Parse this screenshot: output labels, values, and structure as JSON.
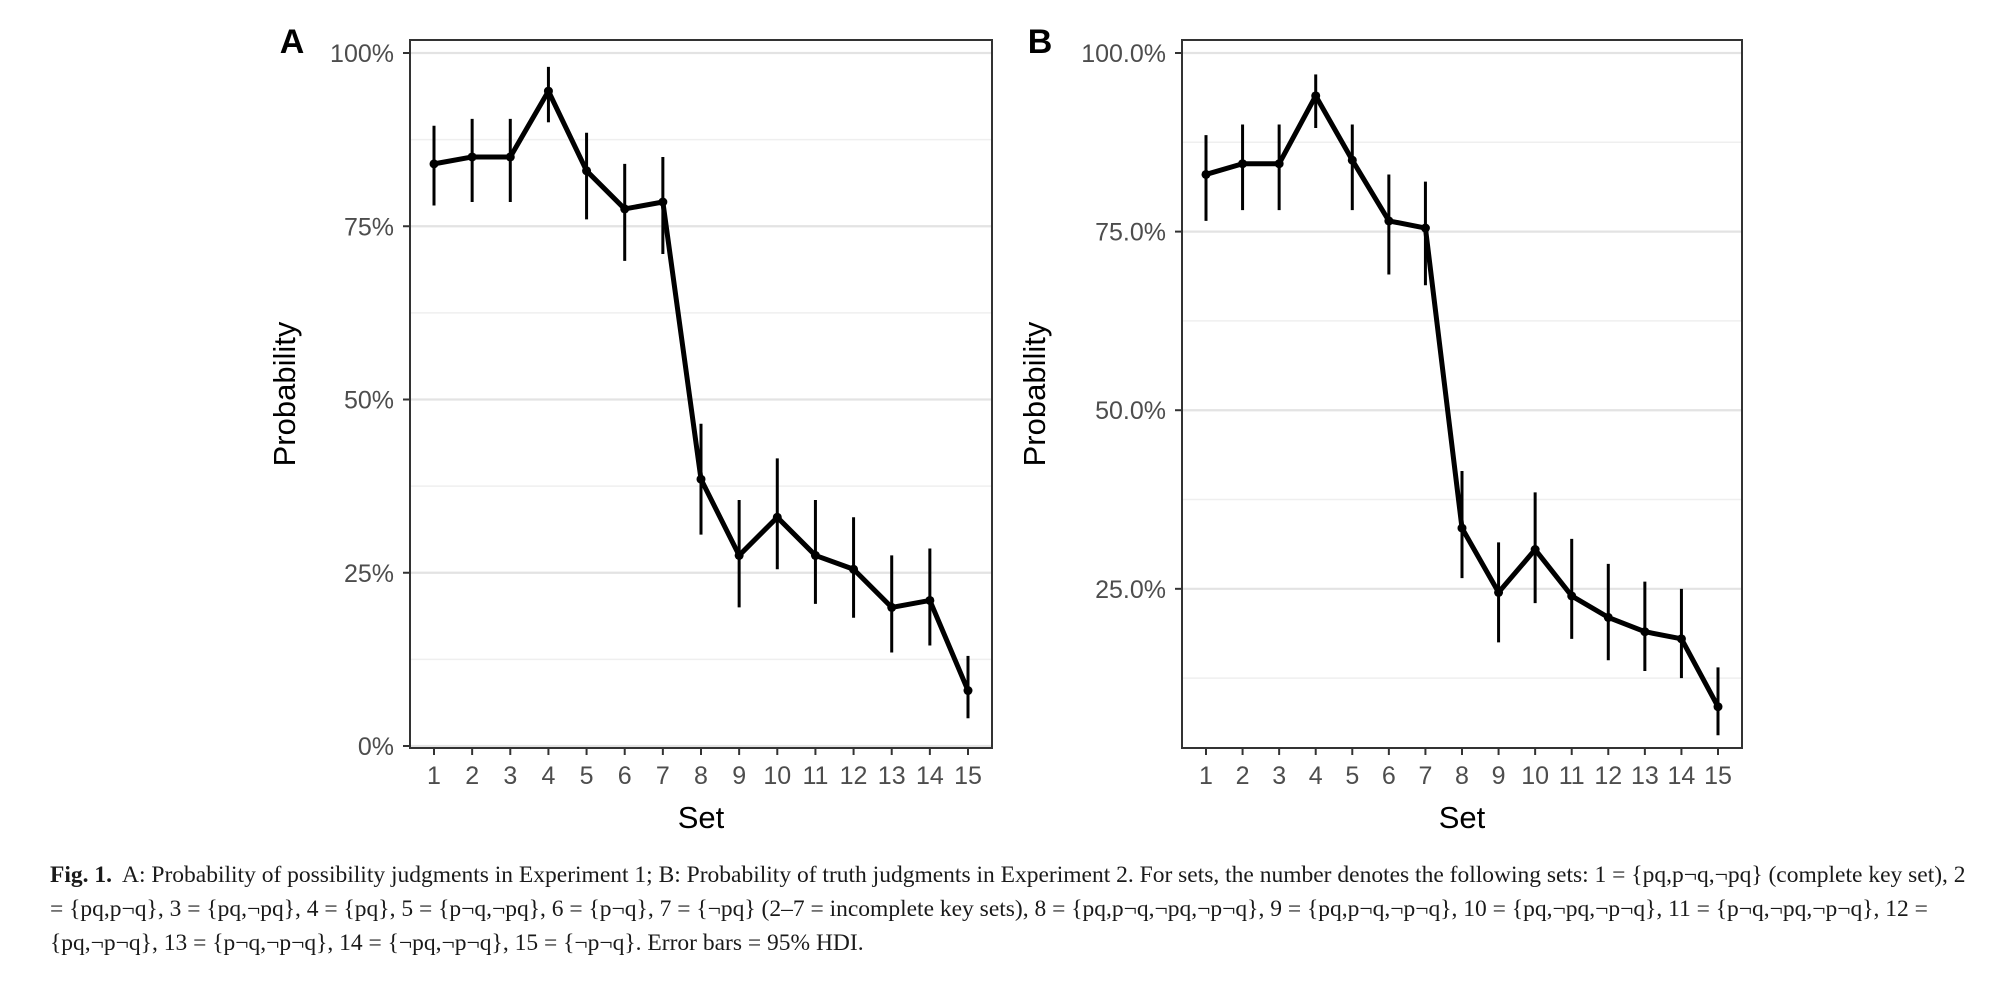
{
  "chart_data": [
    {
      "panel": "A",
      "type": "line",
      "xlabel": "Set",
      "ylabel": "Probability",
      "categories": [
        "1",
        "2",
        "3",
        "4",
        "5",
        "6",
        "7",
        "8",
        "9",
        "10",
        "11",
        "12",
        "13",
        "14",
        "15"
      ],
      "values": [
        0.84,
        0.85,
        0.85,
        0.945,
        0.83,
        0.775,
        0.785,
        0.385,
        0.275,
        0.33,
        0.275,
        0.255,
        0.2,
        0.21,
        0.08
      ],
      "error_low": [
        0.78,
        0.785,
        0.785,
        0.9,
        0.76,
        0.7,
        0.71,
        0.305,
        0.2,
        0.255,
        0.205,
        0.185,
        0.135,
        0.145,
        0.04
      ],
      "error_high": [
        0.895,
        0.905,
        0.905,
        0.98,
        0.885,
        0.84,
        0.85,
        0.465,
        0.355,
        0.415,
        0.355,
        0.33,
        0.275,
        0.285,
        0.13
      ],
      "ylim": [
        0,
        1
      ],
      "yticks": [
        0,
        0.25,
        0.5,
        0.75,
        1
      ],
      "ytick_labels": [
        "0%",
        "25%",
        "50%",
        "75%",
        "100%"
      ],
      "grid": true
    },
    {
      "panel": "B",
      "type": "line",
      "xlabel": "Set",
      "ylabel": "Probability",
      "categories": [
        "1",
        "2",
        "3",
        "4",
        "5",
        "6",
        "7",
        "8",
        "9",
        "10",
        "11",
        "12",
        "13",
        "14",
        "15"
      ],
      "values": [
        0.83,
        0.845,
        0.845,
        0.94,
        0.85,
        0.765,
        0.755,
        0.335,
        0.245,
        0.305,
        0.24,
        0.21,
        0.19,
        0.18,
        0.085
      ],
      "error_low": [
        0.765,
        0.78,
        0.78,
        0.895,
        0.78,
        0.69,
        0.675,
        0.265,
        0.175,
        0.23,
        0.18,
        0.15,
        0.135,
        0.125,
        0.045
      ],
      "error_high": [
        0.885,
        0.9,
        0.9,
        0.97,
        0.9,
        0.83,
        0.82,
        0.415,
        0.315,
        0.385,
        0.32,
        0.285,
        0.26,
        0.25,
        0.14
      ],
      "ylim": [
        0.03,
        1.0
      ],
      "yticks": [
        0.25,
        0.5,
        0.75,
        1.0
      ],
      "ytick_labels": [
        "25.0%",
        "50.0%",
        "75.0%",
        "100.0%"
      ],
      "grid": true
    }
  ],
  "caption": {
    "label": "Fig. 1.",
    "text": "A: Probability of possibility judgments in Experiment 1; B: Probability of truth judgments in Experiment 2. For sets, the number denotes the following sets: 1 = {pq,p¬q,¬pq} (complete key set), 2 = {pq,p¬q}, 3 = {pq,¬pq}, 4 = {pq}, 5 = {p¬q,¬pq}, 6 = {p¬q}, 7 = {¬pq} (2–7 = incomplete key sets), 8 = {pq,p¬q,¬pq,¬p¬q}, 9 = {pq,p¬q,¬p¬q}, 10 = {pq,¬pq,¬p¬q}, 11 = {p¬q,¬pq,¬p¬q}, 12 = {pq,¬p¬q}, 13 = {p¬q,¬p¬q}, 14 = {¬pq,¬p¬q}, 15 = {¬p¬q}. Error bars = 95% HDI."
  }
}
